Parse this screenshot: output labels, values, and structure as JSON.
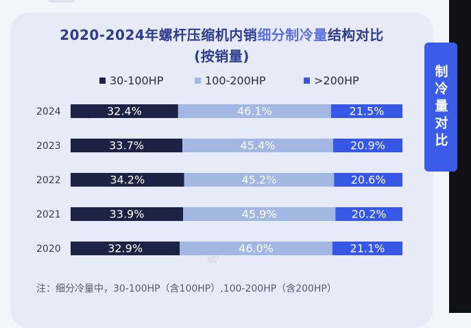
{
  "title": {
    "line1_a": "2020-2024年螺杆压缩机内销",
    "line1_b": "细分制冷量",
    "line1_c": "结构对比",
    "line2": "(按销量)"
  },
  "side_tab": "制冷量对比",
  "footnote": "注：细分冷量中，30-100HP（含100HP）,100-200HP（含200HP）",
  "colors": {
    "s1": "#1b2243",
    "s2": "#a3b7e3",
    "s3": "#3758e6"
  },
  "chart_data": {
    "type": "stacked-bar-horizontal-100",
    "title": "2020-2024年螺杆压缩机内销细分制冷量结构对比（按销量）",
    "categories": [
      "2024",
      "2023",
      "2022",
      "2021",
      "2020"
    ],
    "series": [
      {
        "name": "30-100HP",
        "values": [
          32.4,
          33.7,
          34.2,
          33.9,
          32.9
        ],
        "labels": [
          "32.4%",
          "33.7%",
          "34.2%",
          "33.9%",
          "32.9%"
        ]
      },
      {
        "name": "100-200HP",
        "values": [
          46.1,
          45.4,
          45.2,
          45.9,
          46.0
        ],
        "labels": [
          "46.1%",
          "45.4%",
          "45.2%",
          "45.9%",
          "46.0%"
        ]
      },
      {
        "name": ">200HP",
        "values": [
          21.5,
          20.9,
          20.6,
          20.2,
          21.1
        ],
        "labels": [
          "21.5%",
          "20.9%",
          "20.6%",
          "20.2%",
          "21.1%"
        ]
      }
    ],
    "xlim": [
      0,
      100
    ],
    "legend": "top"
  }
}
